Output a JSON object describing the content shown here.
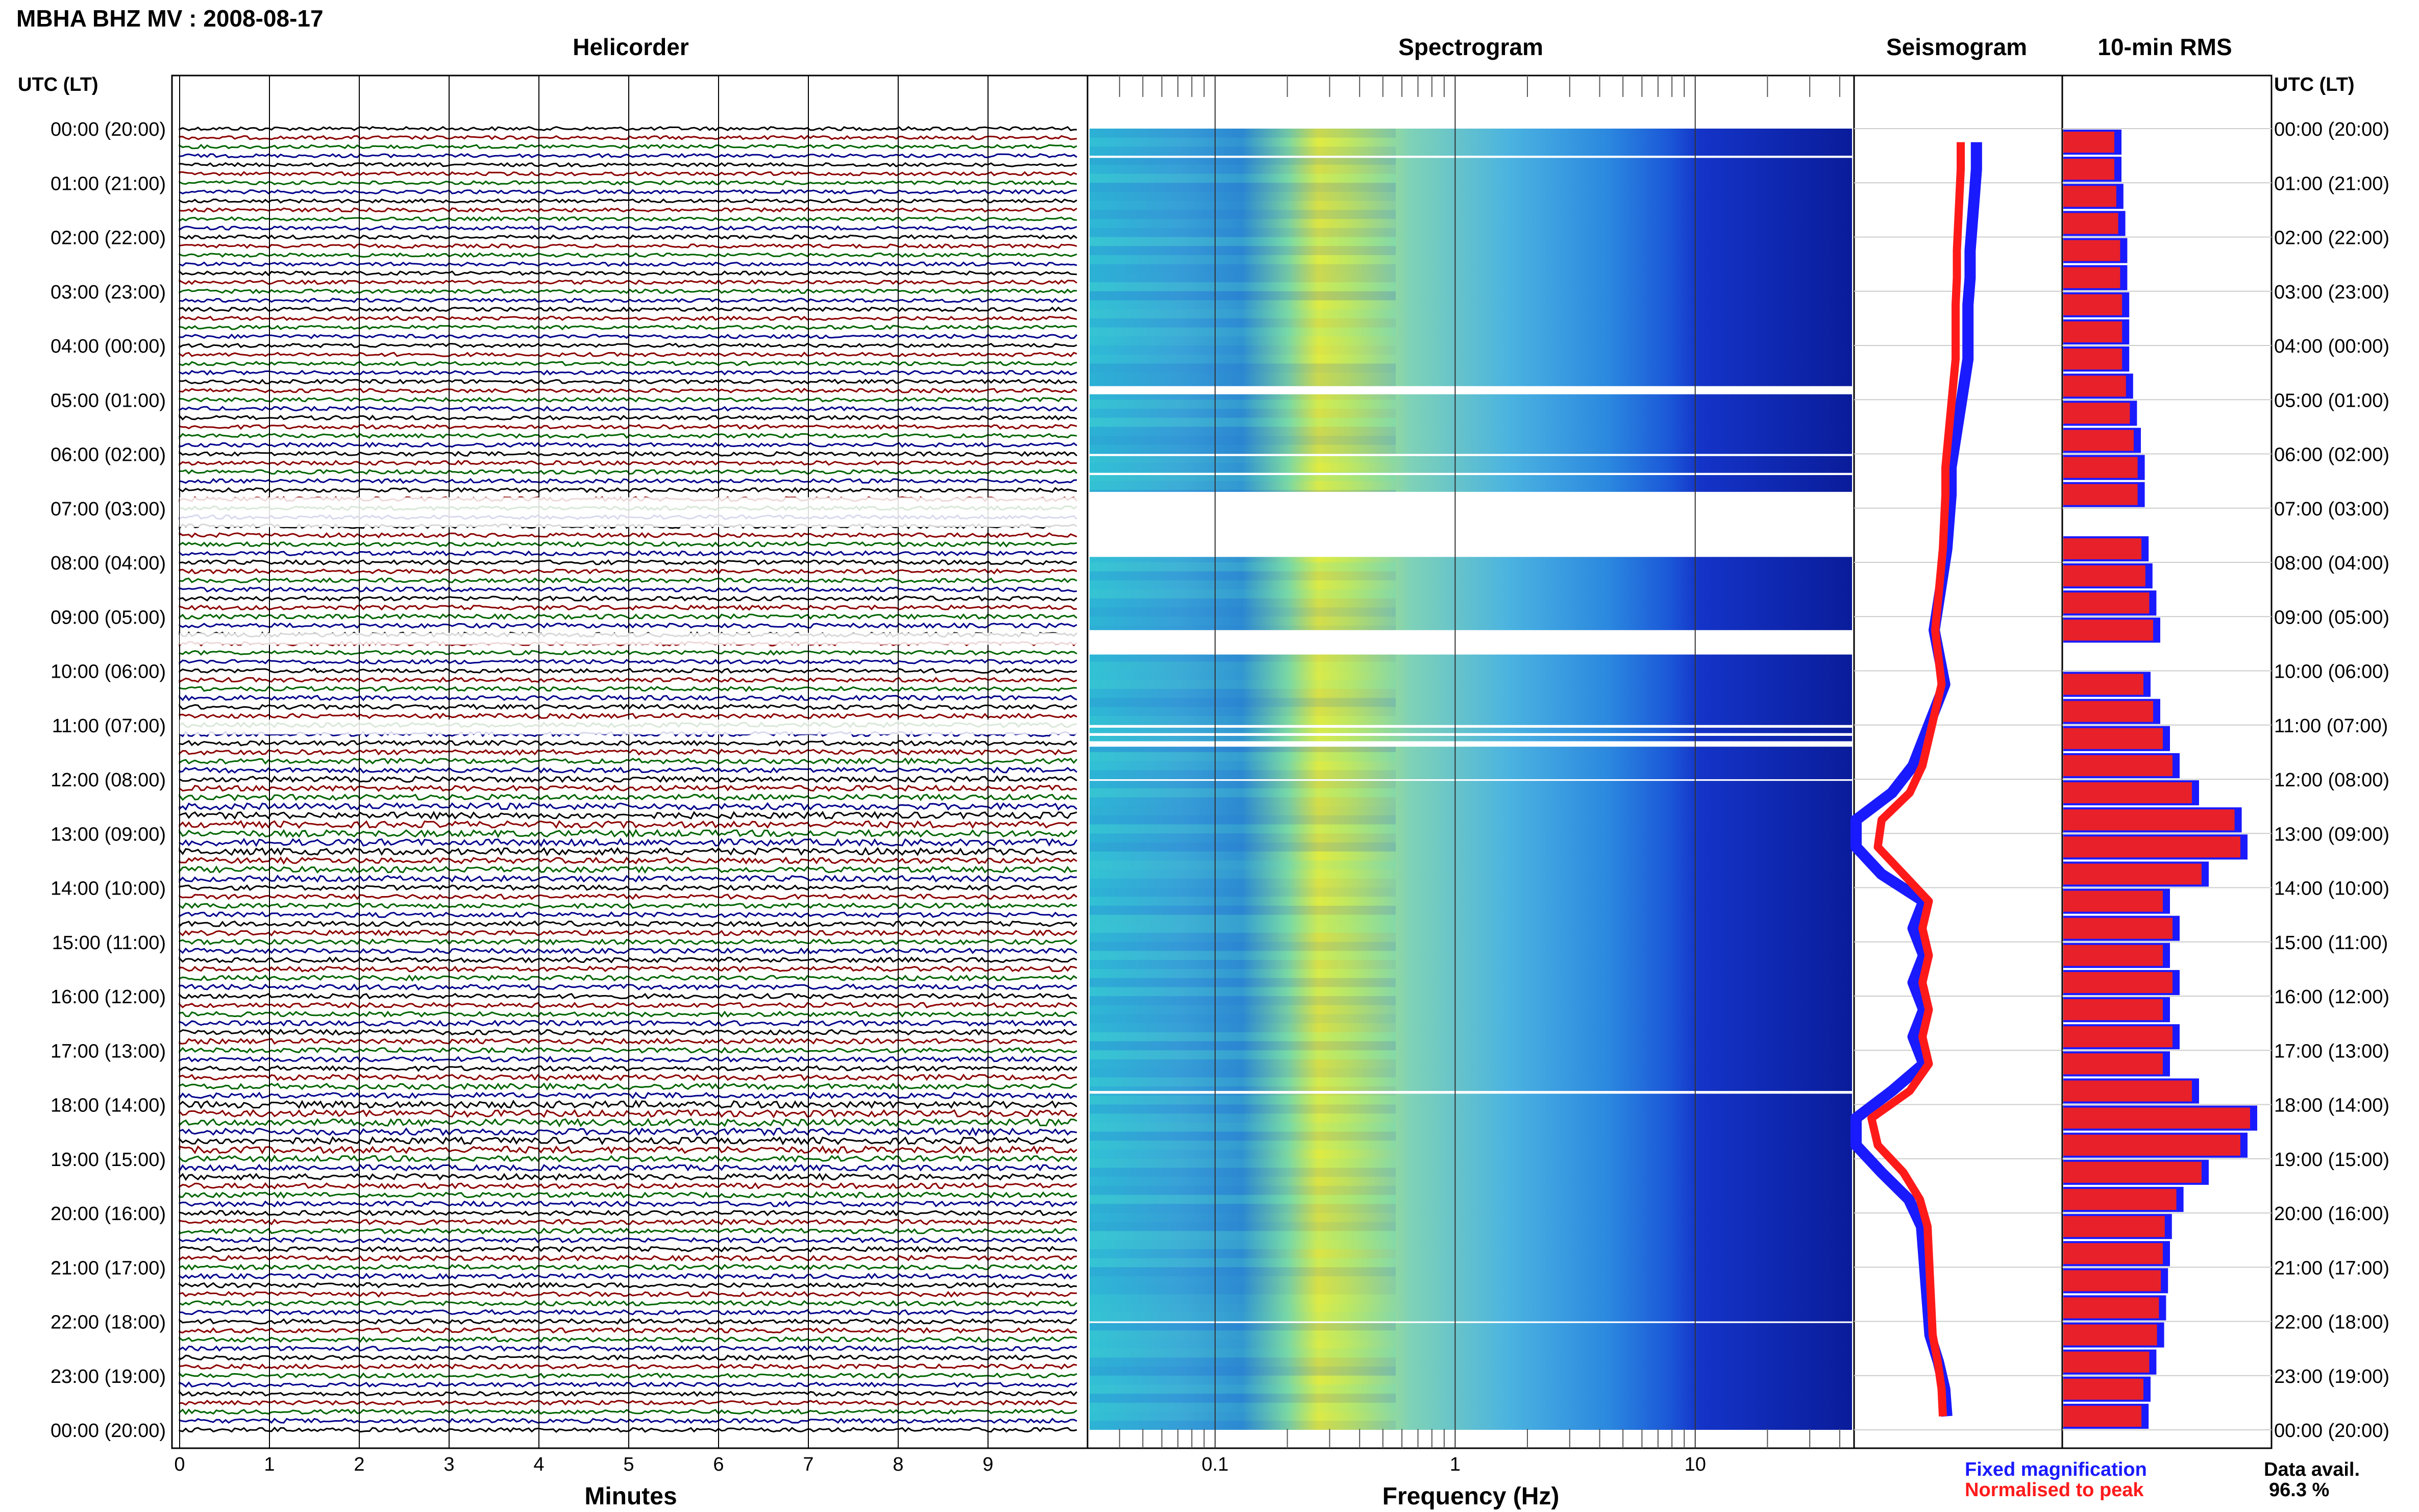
{
  "title": "MBHA BHZ MV : 2008-08-17",
  "panels": {
    "helicorder": "Helicorder",
    "spectrogram": "Spectrogram",
    "seismogram": "Seismogram",
    "rms": "10-min RMS"
  },
  "axis": {
    "utc_header": "UTC (LT)",
    "minutes_label": "Minutes",
    "frequency_label": "Frequency (Hz)",
    "minute_ticks": [
      "0",
      "1",
      "2",
      "3",
      "4",
      "5",
      "6",
      "7",
      "8",
      "9"
    ],
    "freq_ticks": [
      "0.1",
      "1",
      "10"
    ]
  },
  "time_labels": [
    "00:00 (20:00)",
    "01:00 (21:00)",
    "02:00 (22:00)",
    "03:00 (23:00)",
    "04:00 (00:00)",
    "05:00 (01:00)",
    "06:00 (02:00)",
    "07:00 (03:00)",
    "08:00 (04:00)",
    "09:00 (05:00)",
    "10:00 (06:00)",
    "11:00 (07:00)",
    "12:00 (08:00)",
    "13:00 (09:00)",
    "14:00 (10:00)",
    "15:00 (11:00)",
    "16:00 (12:00)",
    "17:00 (13:00)",
    "18:00 (14:00)",
    "19:00 (15:00)",
    "20:00 (16:00)",
    "21:00 (17:00)",
    "22:00 (18:00)",
    "23:00 (19:00)",
    "00:00 (20:00)"
  ],
  "legend": {
    "fixed": "Fixed magnification",
    "normalised": "Normalised to peak",
    "fixed_color": "#1a1aff",
    "normalised_color": "#ff1a1a"
  },
  "availability": {
    "label": "Data avail.",
    "value": "96.3 %"
  },
  "colors": {
    "trace_cycle": [
      "#000000",
      "#8b0000",
      "#006400",
      "#00008b"
    ],
    "rms_fixed": "#1a1aff",
    "rms_normalised": "#e8202a"
  },
  "chart_data": {
    "type": "bar",
    "name": "10-min RMS",
    "x_unit": "hour UTC",
    "y_unit": "relative RMS",
    "hours": [
      0,
      0.5,
      1,
      1.5,
      2,
      2.5,
      3,
      3.5,
      4,
      4.5,
      5,
      5.5,
      6,
      6.5,
      7,
      7.5,
      8,
      8.5,
      9,
      9.5,
      10,
      10.5,
      11,
      11.5,
      12,
      12.5,
      13,
      13.5,
      14,
      14.5,
      15,
      15.5,
      16,
      16.5,
      17,
      17.5,
      18,
      18.5,
      19,
      19.5,
      20,
      20.5,
      21,
      21.5,
      22,
      22.5,
      23,
      23.5
    ],
    "values": [
      30,
      30,
      31,
      32,
      33,
      33,
      34,
      34,
      34,
      36,
      38,
      40,
      42,
      42,
      null,
      44,
      46,
      48,
      50,
      null,
      45,
      50,
      55,
      60,
      70,
      92,
      95,
      75,
      55,
      60,
      55,
      60,
      55,
      60,
      55,
      70,
      100,
      95,
      75,
      62,
      56,
      55,
      54,
      53,
      52,
      48,
      45,
      44
    ],
    "gaps_hours": [
      [
        6.8,
        7.8
      ],
      [
        9.3,
        9.7
      ],
      [
        10.9,
        11.4
      ]
    ],
    "frequency_ticks_hz": [
      0.1,
      1,
      10
    ],
    "frequency_range_hz": [
      0.03,
      45
    ],
    "minute_range": [
      0,
      10
    ]
  }
}
